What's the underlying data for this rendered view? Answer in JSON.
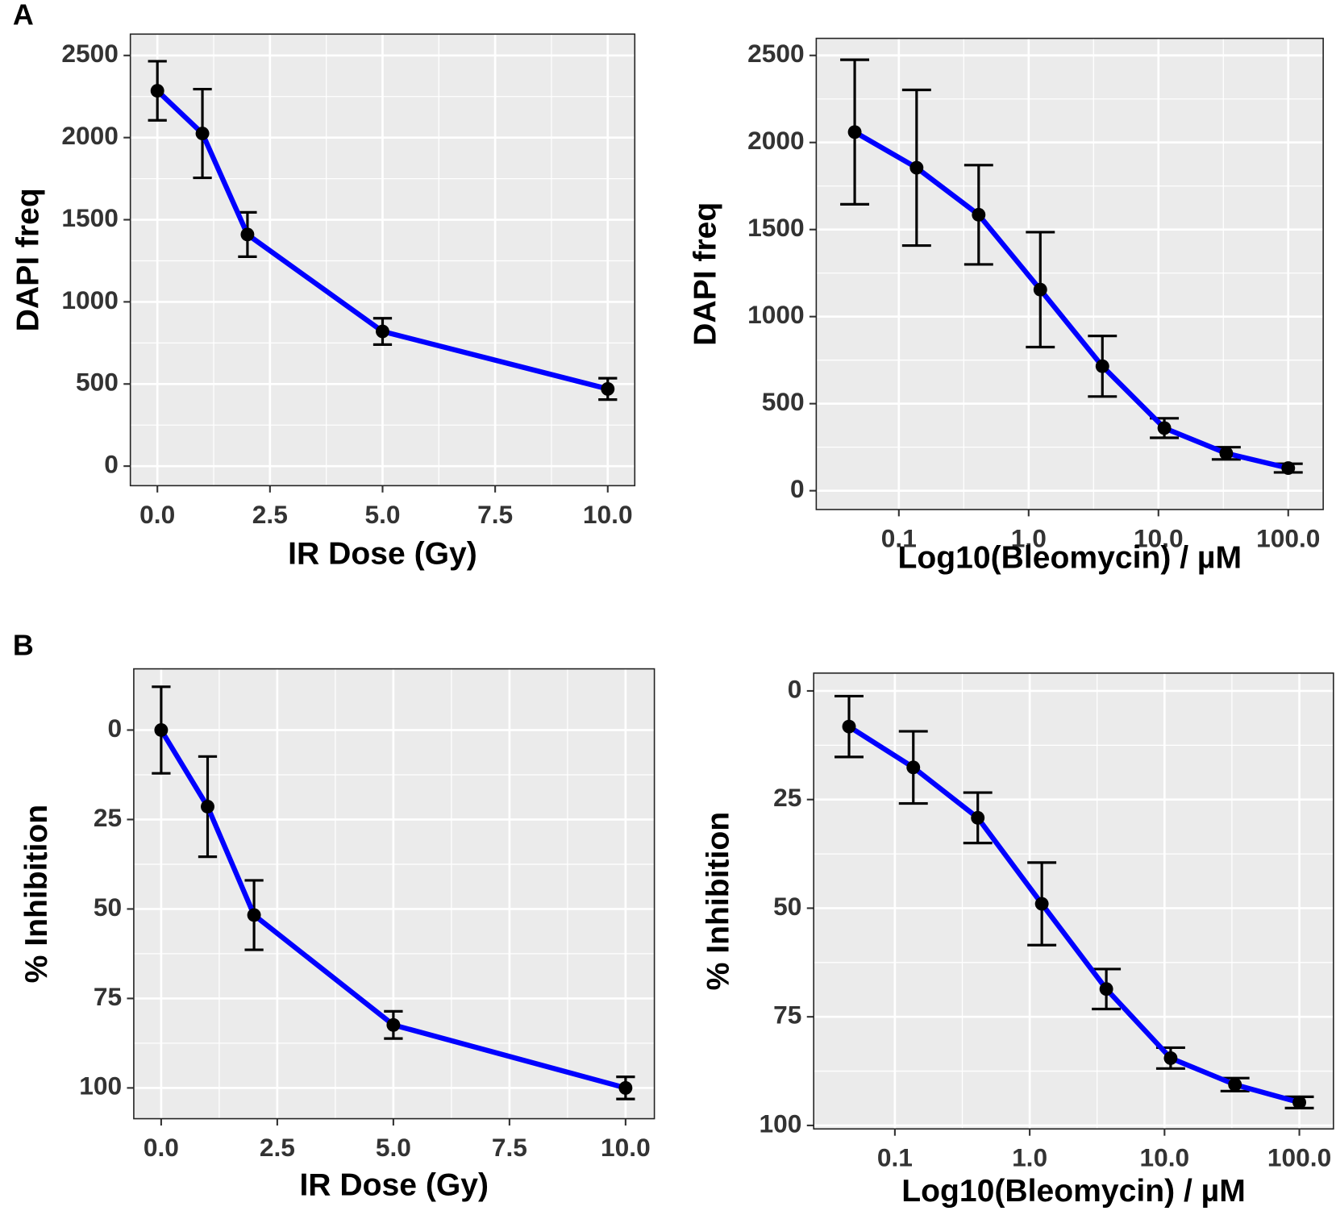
{
  "panel_labels": [
    "A",
    "B"
  ],
  "chart_data": [
    {
      "type": "line",
      "xlabel": "IR Dose (Gy)",
      "ylabel": "DAPI freq",
      "x": [
        0,
        1,
        2,
        5,
        10
      ],
      "values": [
        2285,
        2025,
        1410,
        820,
        470
      ],
      "errors": [
        180,
        270,
        135,
        80,
        65
      ],
      "color": "#0000ff",
      "marker_color": "#000000",
      "xlim": [
        -0.6,
        10.6
      ],
      "ylim": [
        -119,
        2630
      ],
      "xticks": [
        {
          "value": 0,
          "label": "0.0"
        },
        2.5,
        {
          "value": 5,
          "label": "5.0"
        },
        7.5,
        {
          "value": 10,
          "label": "10.0"
        }
      ],
      "yticks": [
        0,
        500,
        1000,
        1500,
        2000,
        2500
      ],
      "grid": true
    },
    {
      "type": "line",
      "xlabel": "Log10(Bleomycin) / µM",
      "ylabel": "DAPI freq",
      "xscale": "log",
      "x": [
        0.0457,
        0.137,
        0.412,
        1.23,
        3.7,
        11.1,
        33.3,
        100
      ],
      "values": [
        2060,
        1855,
        1585,
        1155,
        715,
        360,
        215,
        130
      ],
      "errors": [
        415,
        447,
        285,
        330,
        174,
        56,
        35,
        25
      ],
      "color": "#0000ff",
      "marker_color": "#000000",
      "xlim": [
        0.0231,
        186
      ],
      "ylim": [
        -108,
        2598
      ],
      "xticks": [
        0.1,
        {
          "value": 1,
          "label": "1.0"
        },
        {
          "value": 10,
          "label": "10.0"
        },
        {
          "value": 100,
          "label": "100.0"
        }
      ],
      "yticks": [
        0,
        500,
        1000,
        1500,
        2000,
        2500
      ],
      "grid": true
    },
    {
      "type": "line",
      "xlabel": "IR Dose (Gy)",
      "ylabel": "% Inhibition",
      "x": [
        0,
        1,
        2,
        5,
        10
      ],
      "values": [
        0,
        21.4,
        51.7,
        82.4,
        100
      ],
      "errors": [
        12.1,
        14,
        9.7,
        3.8,
        3.1
      ],
      "color": "#0000ff",
      "marker_color": "#000000",
      "xlim": [
        -0.59,
        10.62
      ],
      "ylim": [
        108.6,
        -17.1
      ],
      "xticks": [
        {
          "value": 0,
          "label": "0.0"
        },
        2.5,
        {
          "value": 5,
          "label": "5.0"
        },
        7.5,
        {
          "value": 10,
          "label": "10.0"
        }
      ],
      "yticks": [
        0,
        25,
        50,
        75,
        100
      ],
      "grid": true
    },
    {
      "type": "line",
      "xlabel": "Log10(Bleomycin) / µM",
      "ylabel": "% Inhibition",
      "xscale": "log",
      "x": [
        0.0457,
        0.137,
        0.412,
        1.23,
        3.7,
        11.1,
        33.3,
        100
      ],
      "values": [
        8.2,
        17.6,
        29.2,
        49,
        68.6,
        84.5,
        90.6,
        94.7
      ],
      "errors": [
        7,
        8.3,
        5.8,
        9.5,
        4.6,
        2.4,
        1.5,
        1.3
      ],
      "color": "#0000ff",
      "marker_color": "#000000",
      "xlim": [
        0.025,
        179
      ],
      "ylim": [
        100.8,
        -4.1
      ],
      "xticks": [
        0.1,
        {
          "value": 1,
          "label": "1.0"
        },
        {
          "value": 10,
          "label": "10.0"
        },
        {
          "value": 100,
          "label": "100.0"
        }
      ],
      "yticks": [
        0,
        25,
        50,
        75,
        100
      ],
      "grid": true
    }
  ]
}
